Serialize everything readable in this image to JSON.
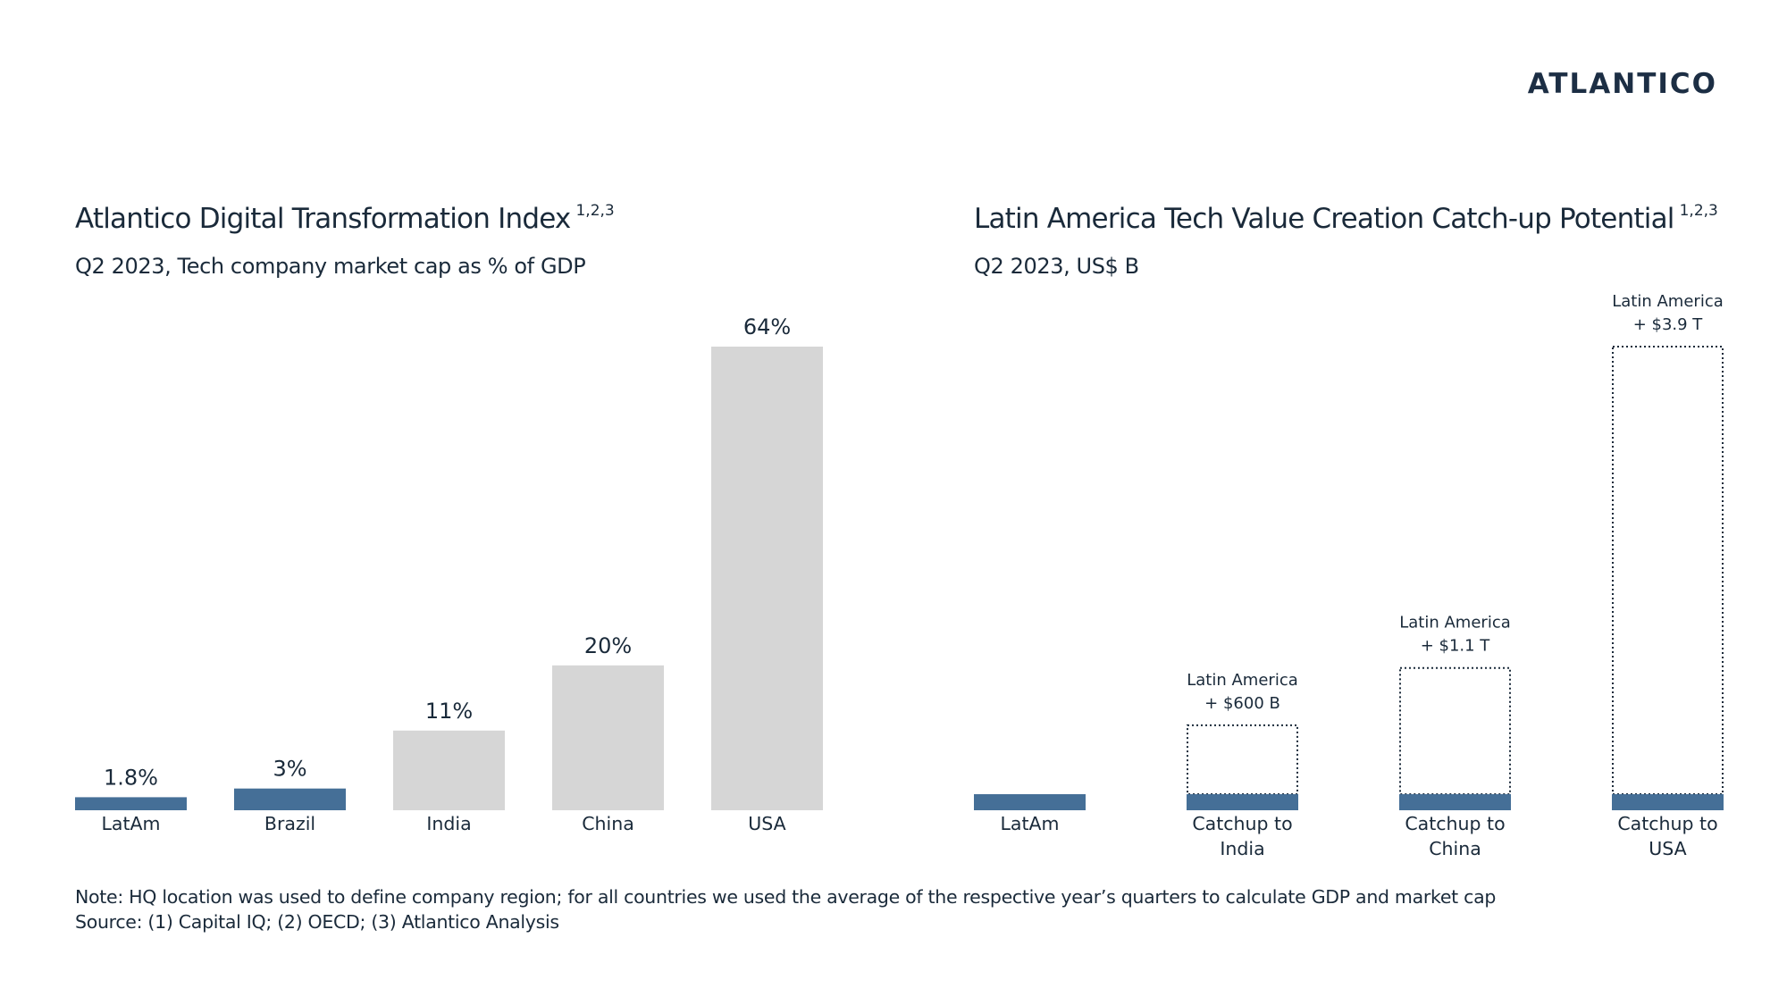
{
  "logo": {
    "text": "ATLANTICO"
  },
  "colors": {
    "highlight": "#456f97",
    "benchmark": "#d6d6d6",
    "text": "#1a2a3a"
  },
  "chart_data": [
    {
      "type": "bar",
      "title": "Atlantico Digital Transformation Index",
      "title_superscript": "1,2,3",
      "subtitle": "Q2 2023, Tech company market cap as % of GDP",
      "categories": [
        "LatAm",
        "Brazil",
        "India",
        "China",
        "USA"
      ],
      "values": [
        1.8,
        3,
        11,
        20,
        64
      ],
      "value_labels": [
        "1.8%",
        "3%",
        "11%",
        "20%",
        "64%"
      ],
      "highlighted": [
        true,
        true,
        false,
        false,
        false
      ],
      "unit": "%",
      "ylim": [
        0,
        64
      ],
      "grid": false
    },
    {
      "type": "bar",
      "title": "Latin America Tech Value Creation Catch-up Potential",
      "title_superscript": "1,2,3",
      "subtitle": "Q2 2023, US$ B",
      "categories": [
        "LatAm",
        "Catchup to India",
        "Catchup to China",
        "Catchup to USA"
      ],
      "series": [
        {
          "values": [
            140,
            140,
            140,
            140
          ]
        },
        {
          "values": [
            0,
            600,
            1100,
            3900
          ]
        }
      ],
      "annotations": [
        {
          "category": "Catchup to India",
          "lines": [
            "Latin America",
            "+ $600 B"
          ]
        },
        {
          "category": "Catchup to China",
          "lines": [
            "Latin America",
            "+ $1.1 T"
          ]
        },
        {
          "category": "Catchup to USA",
          "lines": [
            "Latin America",
            "+ $3.9 T"
          ]
        }
      ],
      "ylim": [
        0,
        4040
      ],
      "grid": false
    }
  ],
  "notes": {
    "note": "Note: HQ location was used to define company region; for all countries we used the average of the respective year’s quarters to calculate GDP and market cap",
    "source": "Source: (1) Capital IQ; (2) OECD; (3) Atlantico Analysis"
  }
}
